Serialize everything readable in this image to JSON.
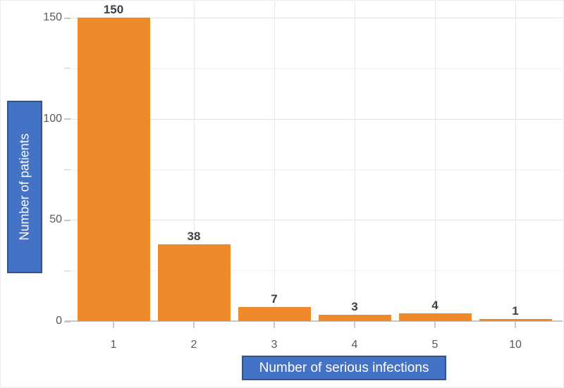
{
  "chart_data": {
    "type": "bar",
    "categories": [
      "1",
      "2",
      "3",
      "4",
      "5",
      "10"
    ],
    "values": [
      150,
      38,
      7,
      3,
      4,
      1
    ],
    "value_labels": [
      "150",
      "38",
      "7",
      "3",
      "4",
      "1"
    ],
    "title": "",
    "xlabel": "Number of serious infections",
    "ylabel": "Number of patients",
    "ylim": [
      0,
      150
    ],
    "yticks_major": [
      0,
      50,
      100,
      150
    ],
    "yticks_minor": [
      25,
      75,
      125
    ],
    "ytick_labels": [
      "0",
      "50",
      "100",
      "150"
    ],
    "grid": "on",
    "legend": "none",
    "style": {
      "bar_color": "#EF8A2C",
      "value_label_color": "#3D4148",
      "tick_label_color": "#595959",
      "axis_line_color": "#C6C6C6",
      "major_grid_color": "#E3E3E3",
      "minor_grid_color": "#F1F1F1",
      "vertical_grid_color": "#E9E9E9",
      "axis_title_fill": "#4472C4",
      "axis_title_border": "#2F5597",
      "axis_title_text_color": "#FFFFFF",
      "background": "#FFFFFF"
    }
  }
}
